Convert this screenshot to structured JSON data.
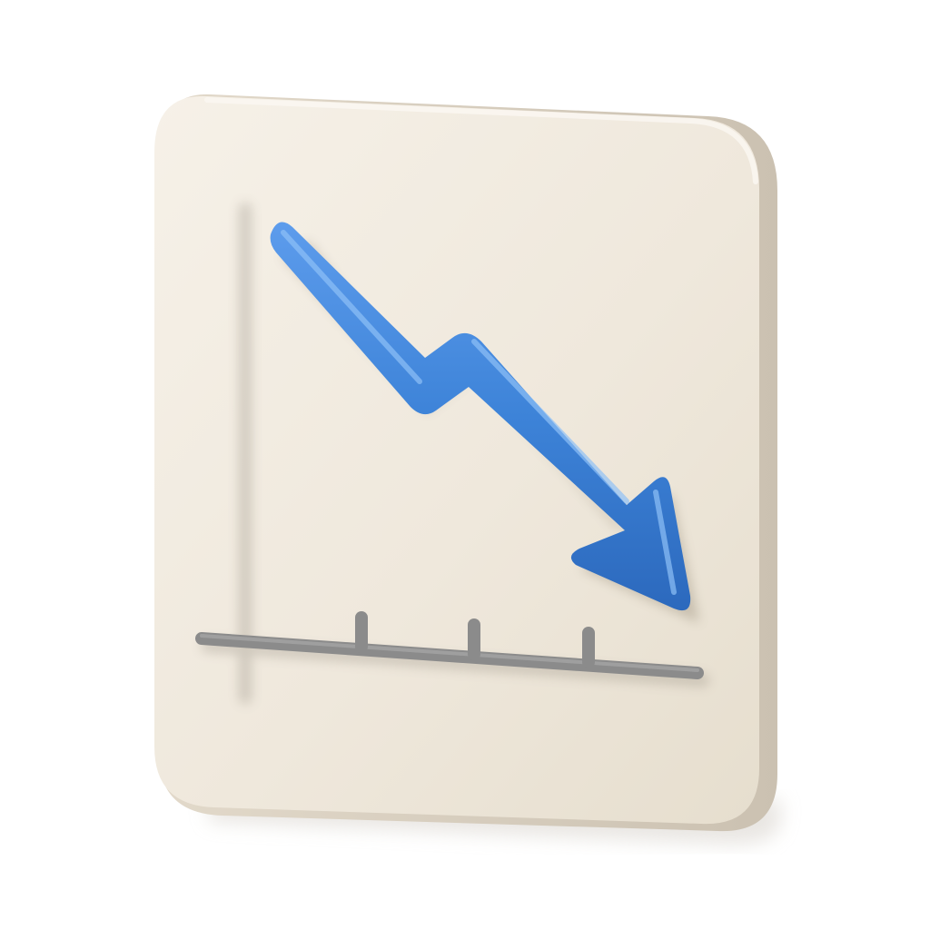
{
  "icon": {
    "name": "declining-chart-icon",
    "style": "3d-clay",
    "trend": "downward",
    "axis_tick_count": 3
  },
  "colors": {
    "background": "#ffffff",
    "tile_face": "#efe8dc",
    "tile_highlight": "#f7f2ea",
    "tile_side": "#d9d0c2",
    "tile_shadow": "#c8bfb0",
    "axis": "#8b8b8b",
    "axis_highlight": "#a6a6a6",
    "arrow": "#3d83d8",
    "arrow_highlight": "#6aa5ee",
    "arrow_shadow": "#2a62b0"
  }
}
